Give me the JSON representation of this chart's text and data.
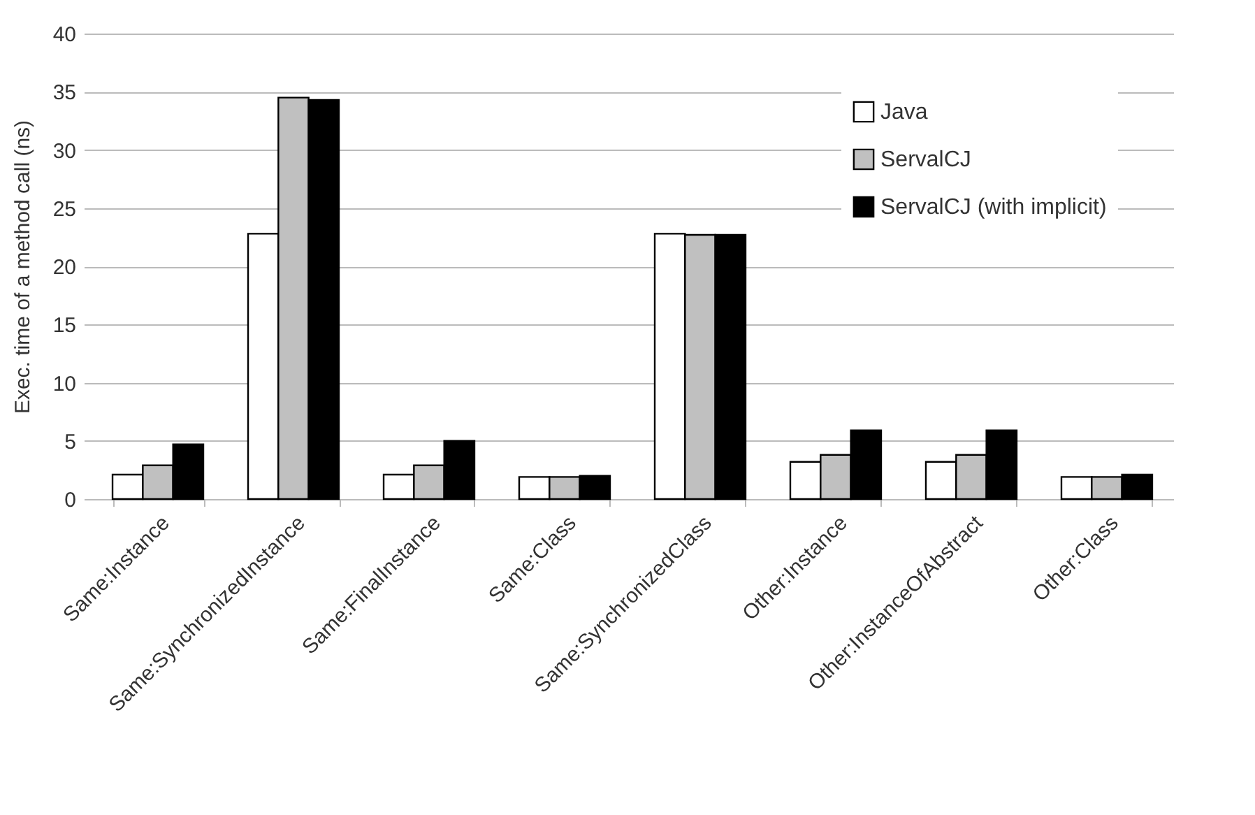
{
  "chart_data": {
    "type": "bar",
    "ylabel": "Exec. time of a method call (ns)",
    "categories": [
      "Same:Instance",
      "Same:SynchronizedInstance",
      "Same:FinalInstance",
      "Same:Class",
      "Same:SynchronizedClass",
      "Other:Instance",
      "Other:InstanceOfAbstract",
      "Other:Class"
    ],
    "series": [
      {
        "name": "Java",
        "color": "#ffffff",
        "values": [
          2.1,
          22.8,
          2.1,
          1.9,
          22.8,
          3.2,
          3.2,
          1.9
        ]
      },
      {
        "name": "ServalCJ",
        "color": "#c0c0c0",
        "values": [
          2.9,
          34.5,
          2.9,
          1.9,
          22.7,
          3.8,
          3.8,
          1.9
        ]
      },
      {
        "name": "ServalCJ (with implicit)",
        "color": "#000000",
        "values": [
          4.7,
          34.3,
          5.0,
          2.0,
          22.7,
          5.9,
          5.9,
          2.1
        ]
      }
    ],
    "ylim": [
      0,
      40
    ],
    "yticks": [
      0,
      5,
      10,
      15,
      20,
      25,
      30,
      35,
      40
    ],
    "grid": "y",
    "legend": "top right"
  }
}
